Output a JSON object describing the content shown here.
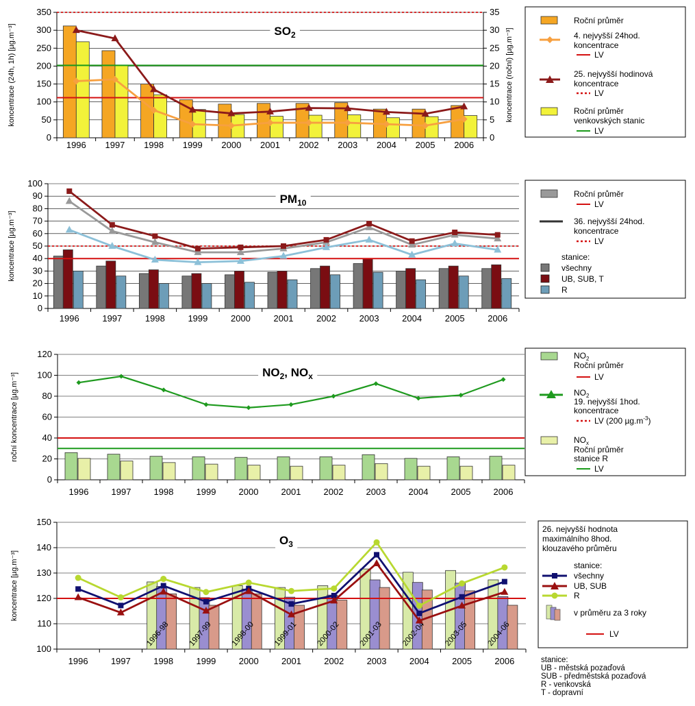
{
  "years": [
    "1996",
    "1997",
    "1998",
    "1999",
    "2000",
    "2001",
    "2002",
    "2003",
    "2004",
    "2005",
    "2006"
  ],
  "colors": {
    "so2_annual": "#f5a623",
    "so2_rural": "#f2f23a",
    "so2_4th": "#f7a040",
    "so2_25th": "#8b1a1a",
    "lv_red": "#d41010",
    "lv_green": "#1a9a1a",
    "pm_all": "#777777",
    "pm_ub": "#7a0d12",
    "pm_r": "#6d9db8",
    "pm_line_all": "#999999",
    "pm_line_ub": "#8b1a1a",
    "pm_line_r": "#8cc0d8",
    "no2": "#a8d890",
    "nox": "#e8f0a8",
    "no2_line": "#1e9a1e",
    "o3_g": "#d8eaa8",
    "o3_b": "#9a8ed0",
    "o3_p": "#d89a8a",
    "o3_l_all": "#101070",
    "o3_l_ub": "#9a1010",
    "o3_l_r": "#b8d830"
  },
  "chart_data": [
    {
      "id": "so2",
      "type": "bar",
      "title_main": "SO",
      "title_sub": "2",
      "ylabel_left": "koncentrace (24h, 1h) [µg.m⁻³]",
      "ylabel_right": "koncentrace (roční) [µg.m⁻³]",
      "ylim_left": [
        0,
        350
      ],
      "ylim_right": [
        0,
        35
      ],
      "yticks_left": [
        "0",
        "50",
        "100",
        "150",
        "200",
        "250",
        "300",
        "350"
      ],
      "yticks_right": [
        "0",
        "5",
        "10",
        "15",
        "20",
        "25",
        "30",
        "35"
      ],
      "categories": [
        "1996",
        "1997",
        "1998",
        "1999",
        "2000",
        "2001",
        "2002",
        "2003",
        "2004",
        "2005",
        "2006"
      ],
      "bars": [
        {
          "name": "Roční průměr",
          "axis": "right",
          "values": [
            31.2,
            24.3,
            15.0,
            10.6,
            9.4,
            9.6,
            9.6,
            9.8,
            8.0,
            8.0,
            9.0
          ]
        },
        {
          "name": "Roční průměr venkovských stanic",
          "axis": "right",
          "values": [
            26.8,
            20.3,
            12.0,
            7.9,
            6.5,
            6.0,
            6.3,
            6.4,
            5.6,
            5.9,
            6.2
          ]
        }
      ],
      "lines": [
        {
          "name": "4. nejvyšší 24hod. koncentrace",
          "axis": "left",
          "marker": "diamond",
          "values": [
            158,
            163,
            77,
            38,
            34,
            42,
            42,
            42,
            38,
            34,
            52
          ]
        },
        {
          "name": "25. nejvyšší hodinová koncentrace",
          "axis": "left",
          "marker": "triangle",
          "values": [
            300,
            277,
            135,
            78,
            68,
            73,
            83,
            82,
            72,
            67,
            87
          ]
        }
      ],
      "limits": [
        {
          "axis": "left",
          "value": 350,
          "style": "dotted",
          "color": "red"
        },
        {
          "axis": "left",
          "value": 112,
          "style": "solid",
          "color": "red"
        },
        {
          "axis": "left",
          "value": 202,
          "style": "solid",
          "color": "green"
        }
      ]
    },
    {
      "id": "pm10",
      "type": "bar",
      "title_main": "PM",
      "title_sub": "10",
      "ylabel_left": "koncentrace [µg.m⁻³]",
      "ylim_left": [
        0,
        100
      ],
      "yticks_left": [
        "0",
        "10",
        "20",
        "30",
        "40",
        "50",
        "60",
        "70",
        "80",
        "90",
        "100"
      ],
      "categories": [
        "1996",
        "1997",
        "1998",
        "1999",
        "2000",
        "2001",
        "2002",
        "2003",
        "2004",
        "2005",
        "2006"
      ],
      "bars": [
        {
          "name": "všechny",
          "values": [
            42,
            34,
            28,
            26,
            27,
            29,
            32,
            36,
            30,
            32,
            32
          ]
        },
        {
          "name": "UB, SUB, T",
          "values": [
            47,
            38,
            31,
            28,
            30,
            30,
            34,
            40,
            32,
            34,
            35
          ]
        },
        {
          "name": "R",
          "values": [
            30,
            26,
            20,
            20,
            21,
            23,
            27,
            29,
            23,
            26,
            24
          ]
        }
      ],
      "lines": [
        {
          "name": "36. nejvyšší 24hod. koncentrace (všechny)",
          "values": [
            86,
            62,
            53,
            45,
            45,
            48,
            53,
            65,
            51,
            59,
            56
          ]
        },
        {
          "name": "36. nejvyšší 24hod. koncentrace (UB, SUB, T)",
          "values": [
            94,
            67,
            58,
            48,
            49,
            50,
            55,
            68,
            54,
            61,
            59
          ]
        },
        {
          "name": "36. nejvyšší 24hod. koncentrace (R)",
          "values": [
            63,
            50,
            39,
            37,
            38,
            42,
            49,
            55,
            43,
            52,
            47
          ]
        }
      ],
      "limits": [
        {
          "value": 50,
          "style": "dotted",
          "color": "red"
        },
        {
          "value": 40,
          "style": "solid",
          "color": "red"
        }
      ]
    },
    {
      "id": "no2",
      "type": "bar",
      "title_main": "NO",
      "title_sub": "2",
      "title_sep": ", NO",
      "title_sub2": "x",
      "ylabel_left": "roční koncentrace [µg.m⁻³]",
      "ylim_left": [
        0,
        120
      ],
      "yticks_left": [
        "0",
        "20",
        "40",
        "60",
        "80",
        "100",
        "120"
      ],
      "categories": [
        "1996",
        "1997",
        "1998",
        "1999",
        "2000",
        "2001",
        "2002",
        "2003",
        "2004",
        "2005",
        "2006"
      ],
      "bars": [
        {
          "name": "NO2 Roční průměr",
          "values": [
            26,
            24.5,
            22.5,
            22,
            21.5,
            22,
            22,
            24,
            20.5,
            22,
            22.5
          ]
        },
        {
          "name": "NOx Roční průměr stanice R",
          "values": [
            20.5,
            18,
            16.5,
            15,
            14,
            13,
            14,
            15.5,
            13,
            13,
            14
          ]
        }
      ],
      "lines": [
        {
          "name": "NO2 19. nejvyšší 1hod. koncentrace",
          "values": [
            93,
            99,
            86,
            72,
            69,
            72,
            80,
            92,
            78,
            81,
            96
          ]
        }
      ],
      "limits": [
        {
          "value": 40,
          "style": "solid",
          "color": "red"
        },
        {
          "value": 30,
          "style": "solid",
          "color": "green"
        }
      ]
    },
    {
      "id": "o3",
      "type": "bar",
      "title_main": "O",
      "title_sub": "3",
      "ylabel_left": "koncentrace [µg.m⁻³]",
      "ylim_left": [
        100,
        150
      ],
      "yticks_left": [
        "100",
        "110",
        "120",
        "130",
        "140",
        "150"
      ],
      "categories": [
        "1996",
        "1997",
        "1998",
        "1999",
        "2000",
        "2001",
        "2002",
        "2003",
        "2004",
        "2005",
        "2006"
      ],
      "bars": [
        {
          "name": "v průměru za 3 roky (všechny)",
          "values": [
            null,
            null,
            126.5,
            124.3,
            125,
            124.3,
            125,
            131.6,
            130.3,
            131,
            127.3
          ]
        },
        {
          "name": "v průměru za 3 roky (UB, SUB)",
          "values": [
            null,
            null,
            124.7,
            120.3,
            123.7,
            120.5,
            121.3,
            127.3,
            126.3,
            126,
            120.7
          ]
        },
        {
          "name": "v průměru za 3 roky (R)",
          "values": [
            null,
            null,
            121.8,
            117.3,
            121.8,
            117.3,
            119.3,
            124.3,
            123.3,
            123,
            117.3
          ]
        }
      ],
      "bar_labels": [
        "",
        "",
        "1996-98",
        "1997-99",
        "1998-00",
        "1999-01",
        "2000-02",
        "2001-03",
        "2002-04",
        "2003-05",
        "2004-06"
      ],
      "lines": [
        {
          "name": "všechny",
          "marker": "square",
          "values": [
            123.7,
            117.2,
            125,
            118.7,
            123.9,
            117.8,
            121.1,
            137.2,
            114.1,
            120.6,
            126.6
          ]
        },
        {
          "name": "UB, SUB",
          "marker": "triangle",
          "values": [
            120.4,
            114.4,
            122.6,
            115.1,
            122.8,
            113.6,
            119.1,
            133.8,
            111.2,
            117.1,
            122.5
          ]
        },
        {
          "name": "R",
          "marker": "circle",
          "values": [
            128.1,
            120.4,
            127.7,
            122.5,
            126.2,
            122.9,
            123.9,
            142.1,
            117.1,
            125.9,
            132.2
          ]
        }
      ],
      "limits": [
        {
          "value": 120,
          "style": "solid",
          "color": "red"
        }
      ]
    }
  ],
  "legend_so2": [
    "Roční průměr",
    "4. nejvyšší 24hod.",
    "koncentrace",
    "LV",
    "25. nejvyšší hodinová",
    "koncentrace",
    "LV",
    "Roční průměr",
    "venkovských stanic",
    "LV"
  ],
  "legend_pm10": [
    "Roční průměr",
    "LV",
    "36. nejvyšší 24hod.",
    "koncentrace",
    "LV",
    "stanice:",
    "všechny",
    "UB, SUB, T",
    "R"
  ],
  "legend_no2": {
    "no2": "NO",
    "sub2": "2",
    "annual": "Roční průměr",
    "lv": "LV",
    "line_l1": "19. nejvyšší 1hod.",
    "line_l2": "koncentrace",
    "lv200_pre": "LV (200 µg.m",
    "lv200_exp": "-3",
    "lv200_post": ")",
    "nox": "NO",
    "subx": "x",
    "nox_l1": "Roční průměr",
    "nox_l2": "stanice R",
    "lv_green": "LV"
  },
  "legend_o3": [
    "26. nejvyšší hodnota",
    "maximálního 8hod.",
    "klouzavého průměru",
    "stanice:",
    "všechny",
    "UB, SUB",
    "R",
    "v průměru za 3 roky",
    "LV"
  ],
  "footnote": [
    "stanice:",
    "UB - městská pozaďová",
    "SUB - předměstská pozaďová",
    "R - venkovská",
    "T - dopravní"
  ]
}
